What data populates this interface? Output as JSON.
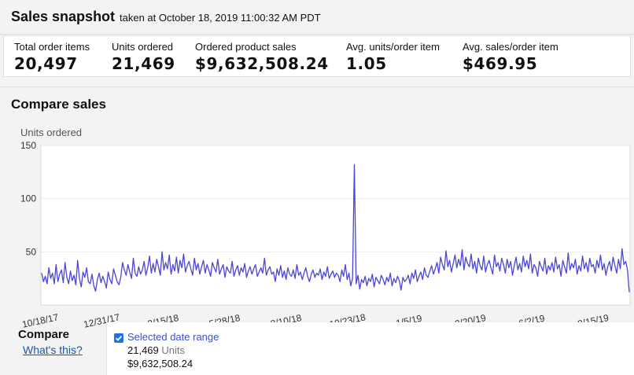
{
  "header": {
    "title": "Sales snapshot",
    "subtitle": "taken at October 18, 2019 11:00:32 AM PDT"
  },
  "metrics": [
    {
      "label": "Total order items",
      "value": "20,497"
    },
    {
      "label": "Units ordered",
      "value": "21,469"
    },
    {
      "label": "Ordered product sales",
      "value": "$9,632,508.24"
    },
    {
      "label": "Avg. units/order item",
      "value": "1.05"
    },
    {
      "label": "Avg. sales/order item",
      "value": "$469.95"
    }
  ],
  "compare": {
    "title": "Compare sales",
    "side_title": "Compare",
    "whats_this": "What's this?",
    "legend": {
      "range_label": "Selected date range",
      "units_value": "21,469",
      "units_word": "Units",
      "sales_value": "$9,632,508.24",
      "checked": true
    }
  },
  "chart_data": {
    "type": "line",
    "ylabel": "Units ordered",
    "ylim": [
      0,
      150
    ],
    "yticks": [
      "150",
      "100",
      "50"
    ],
    "xticks": [
      "10/18/17",
      "12/31/17",
      "3/15/18",
      "5/28/18",
      "8/10/18",
      "10/23/18",
      "1/5/19",
      "3/20/19",
      "6/2/19",
      "8/15/19"
    ],
    "series_color": "#4a45d6",
    "series": [
      {
        "values": [
          30,
          22,
          27,
          20,
          35,
          25,
          30,
          20,
          38,
          22,
          29,
          33,
          21,
          40,
          26,
          20,
          32,
          23,
          28,
          19,
          42,
          25,
          17,
          31,
          26,
          35,
          22,
          20,
          29,
          18,
          13,
          24,
          30,
          21,
          27,
          22,
          16,
          31,
          24,
          20,
          34,
          28,
          22,
          19,
          26,
          40,
          33,
          28,
          38,
          31,
          25,
          44,
          30,
          27,
          36,
          29,
          33,
          41,
          28,
          35,
          46,
          30,
          39,
          31,
          43,
          36,
          28,
          50,
          33,
          40,
          34,
          47,
          29,
          38,
          32,
          45,
          30,
          42,
          35,
          48,
          31,
          37,
          41,
          34,
          28,
          44,
          33,
          39,
          29,
          36,
          42,
          30,
          38,
          33,
          27,
          40,
          35,
          31,
          43,
          29,
          34,
          38,
          26,
          36,
          32,
          30,
          41,
          27,
          33,
          37,
          28,
          35,
          31,
          39,
          26,
          32,
          36,
          29,
          34,
          38,
          27,
          31,
          35,
          30,
          44,
          28,
          33,
          36,
          29,
          31,
          22,
          34,
          28,
          37,
          26,
          32,
          24,
          35,
          29,
          27,
          33,
          25,
          38,
          28,
          31,
          24,
          30,
          35,
          27,
          22,
          29,
          33,
          26,
          30,
          28,
          34,
          24,
          31,
          27,
          36,
          25,
          29,
          32,
          26,
          30,
          28,
          22,
          33,
          27,
          38,
          24,
          30,
          18,
          25,
          132,
          20,
          28,
          15,
          24,
          21,
          27,
          18,
          25,
          22,
          29,
          17,
          26,
          23,
          20,
          28,
          24,
          19,
          26,
          22,
          30,
          18,
          25,
          21,
          27,
          23,
          14,
          26,
          22,
          24,
          28,
          20,
          30,
          25,
          33,
          22,
          27,
          31,
          24,
          35,
          28,
          26,
          32,
          37,
          29,
          34,
          40,
          30,
          45,
          38,
          33,
          51,
          36,
          42,
          31,
          39,
          47,
          35,
          43,
          37,
          52,
          33,
          45,
          39,
          36,
          48,
          34,
          41,
          30,
          44,
          37,
          33,
          46,
          31,
          38,
          42,
          35,
          29,
          47,
          36,
          40,
          32,
          44,
          38,
          30,
          43,
          35,
          41,
          28,
          37,
          45,
          33,
          39,
          31,
          46,
          36,
          42,
          34,
          48,
          30,
          38,
          35,
          27,
          41,
          36,
          32,
          44,
          29,
          37,
          33,
          40,
          31,
          45,
          34,
          38,
          27,
          42,
          36,
          30,
          49,
          33,
          39,
          35,
          43,
          29,
          37,
          32,
          46,
          34,
          40,
          31,
          44,
          36,
          38,
          30,
          42,
          35,
          47,
          33,
          39,
          28,
          36,
          41,
          32,
          45,
          37,
          30,
          43,
          34,
          53,
          38,
          41,
          33,
          12
        ]
      }
    ],
    "grid": true
  }
}
